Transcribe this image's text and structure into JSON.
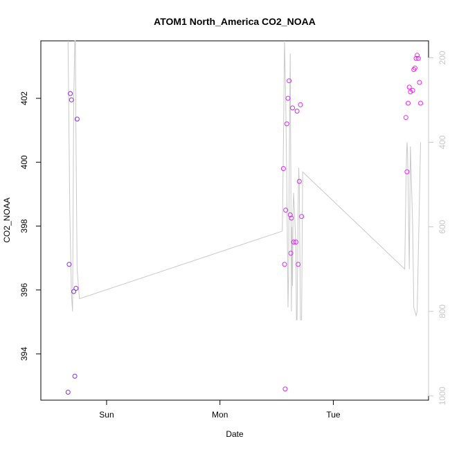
{
  "chart_data": {
    "type": "scatter",
    "title": "ATOM1 North_America CO2_NOAA",
    "xlabel": "Date",
    "ylabel": "CO2_NOAA",
    "x_ticks": [
      "Sun",
      "Mon",
      "Tue"
    ],
    "x_tick_positions": [
      1.0,
      2.0,
      3.0
    ],
    "xlim": [
      0.42,
      3.84
    ],
    "ylim": [
      392.55,
      403.8
    ],
    "y_ticks": [
      394,
      396,
      398,
      400,
      402
    ],
    "y2_ticks": [
      200,
      400,
      600,
      800,
      1000
    ],
    "y2lim": [
      1010,
      160
    ],
    "grid": false,
    "point_style": "open-circle",
    "colors": {
      "low": "#7a3cff",
      "high": "#ff1aff",
      "secondary_line": "#c8c8c8",
      "axis": "#000000",
      "secondary_axis": "#c8c8c8"
    },
    "series": [
      {
        "points": [
          {
            "x": 0.66,
            "y": 392.8,
            "color": "#8a2be2"
          },
          {
            "x": 0.67,
            "y": 396.8,
            "color": "#8a2be2"
          },
          {
            "x": 0.68,
            "y": 402.15,
            "color": "#8a2be2"
          },
          {
            "x": 0.69,
            "y": 401.95,
            "color": "#8a2be2"
          },
          {
            "x": 0.71,
            "y": 395.95,
            "color": "#8a2be2"
          },
          {
            "x": 0.72,
            "y": 393.3,
            "color": "#8a2be2"
          },
          {
            "x": 0.73,
            "y": 396.05,
            "color": "#8a2be2"
          },
          {
            "x": 0.74,
            "y": 401.35,
            "color": "#8a2be2"
          },
          {
            "x": 2.56,
            "y": 399.8,
            "color": "#d02cf0"
          },
          {
            "x": 2.57,
            "y": 396.8,
            "color": "#d02cf0"
          },
          {
            "x": 2.575,
            "y": 392.9,
            "color": "#d02cf0"
          },
          {
            "x": 2.58,
            "y": 398.5,
            "color": "#d02cf0"
          },
          {
            "x": 2.59,
            "y": 401.2,
            "color": "#d02cf0"
          },
          {
            "x": 2.6,
            "y": 402.0,
            "color": "#d02cf0"
          },
          {
            "x": 2.61,
            "y": 402.55,
            "color": "#d02cf0"
          },
          {
            "x": 2.62,
            "y": 398.35,
            "color": "#d02cf0"
          },
          {
            "x": 2.625,
            "y": 397.15,
            "color": "#d02cf0"
          },
          {
            "x": 2.63,
            "y": 398.25,
            "color": "#d02cf0"
          },
          {
            "x": 2.64,
            "y": 401.7,
            "color": "#d02cf0"
          },
          {
            "x": 2.65,
            "y": 397.5,
            "color": "#d02cf0"
          },
          {
            "x": 2.67,
            "y": 397.5,
            "color": "#d02cf0"
          },
          {
            "x": 2.68,
            "y": 401.6,
            "color": "#d02cf0"
          },
          {
            "x": 2.69,
            "y": 396.8,
            "color": "#d02cf0"
          },
          {
            "x": 2.7,
            "y": 399.4,
            "color": "#d02cf0"
          },
          {
            "x": 2.71,
            "y": 401.8,
            "color": "#d02cf0"
          },
          {
            "x": 2.72,
            "y": 398.3,
            "color": "#d02cf0"
          },
          {
            "x": 3.64,
            "y": 401.4,
            "color": "#ff1aff"
          },
          {
            "x": 3.65,
            "y": 399.7,
            "color": "#ff1aff"
          },
          {
            "x": 3.66,
            "y": 401.85,
            "color": "#ff1aff"
          },
          {
            "x": 3.67,
            "y": 402.35,
            "color": "#ff1aff"
          },
          {
            "x": 3.68,
            "y": 402.2,
            "color": "#ff1aff"
          },
          {
            "x": 3.7,
            "y": 402.25,
            "color": "#ff1aff"
          },
          {
            "x": 3.71,
            "y": 402.9,
            "color": "#ff1aff"
          },
          {
            "x": 3.72,
            "y": 402.95,
            "color": "#ff1aff"
          },
          {
            "x": 3.73,
            "y": 403.25,
            "color": "#ff1aff"
          },
          {
            "x": 3.74,
            "y": 403.35,
            "color": "#ff1aff"
          },
          {
            "x": 3.75,
            "y": 403.25,
            "color": "#ff1aff"
          },
          {
            "x": 3.76,
            "y": 402.5,
            "color": "#ff1aff"
          },
          {
            "x": 3.77,
            "y": 401.85,
            "color": "#ff1aff"
          }
        ]
      },
      {
        "axis": "right",
        "type": "line",
        "color": "#c8c8c8",
        "x": [
          0.66,
          0.675,
          0.69,
          0.7,
          0.71,
          0.72,
          0.725,
          0.73,
          0.74,
          0.76,
          2.55,
          2.56,
          2.57,
          2.58,
          2.59,
          2.6,
          2.605,
          2.61,
          2.615,
          2.62,
          2.625,
          2.63,
          2.635,
          2.64,
          2.645,
          2.65,
          2.66,
          2.67,
          2.675,
          2.68,
          2.69,
          2.695,
          2.7,
          2.71,
          2.72,
          2.73,
          3.63,
          3.64,
          3.645,
          3.65,
          3.655,
          3.66,
          3.67,
          3.68,
          3.69,
          3.7,
          3.71,
          3.72,
          3.73,
          3.74,
          3.75,
          3.77
        ],
        "y": [
          160,
          560,
          760,
          800,
          300,
          160,
          160,
          400,
          700,
          770,
          610,
          400,
          160,
          300,
          500,
          790,
          720,
          500,
          340,
          190,
          480,
          800,
          600,
          740,
          560,
          520,
          580,
          650,
          820,
          820,
          540,
          460,
          500,
          820,
          820,
          470,
          700,
          510,
          440,
          400,
          420,
          500,
          700,
          410,
          500,
          600,
          790,
          800,
          810,
          800,
          660,
          400
        ]
      }
    ]
  }
}
